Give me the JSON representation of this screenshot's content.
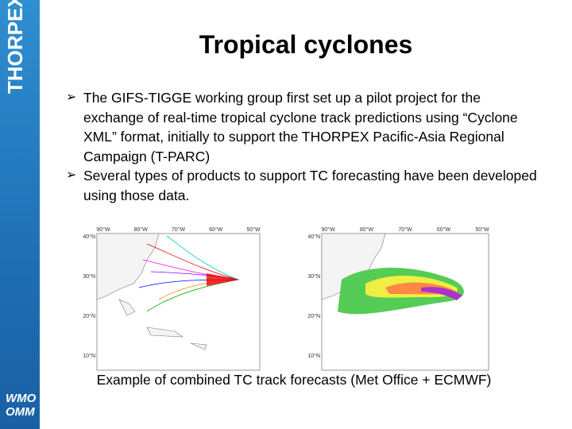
{
  "sidebar": {
    "logo": "THORPEX",
    "org_line1": "WMO",
    "org_line2": "OMM"
  },
  "title": "Tropical cyclones",
  "bullets": [
    "The GIFS-TIGGE working group first set up a pilot project for the exchange of real-time tropical cyclone track predictions using “Cyclone XML” format, initially to support the THORPEX Pacific-Asia Regional Campaign (T-PARC)",
    "Several types of products to support TC forecasting have been developed using those data."
  ],
  "maps": [
    {
      "lon_labels": [
        "90°W",
        "80°W",
        "70°W",
        "60°W",
        "50°W"
      ],
      "lat_labels": [
        "40°N",
        "30°N",
        "20°N",
        "10°N"
      ]
    },
    {
      "lon_labels": [
        "90°W",
        "80°W",
        "70°W",
        "60°W",
        "50°W"
      ],
      "lat_labels": [
        "40°N",
        "30°N",
        "20°N",
        "10°N"
      ]
    }
  ],
  "caption": "Example of combined TC track forecasts (Met Office + ECMWF)"
}
